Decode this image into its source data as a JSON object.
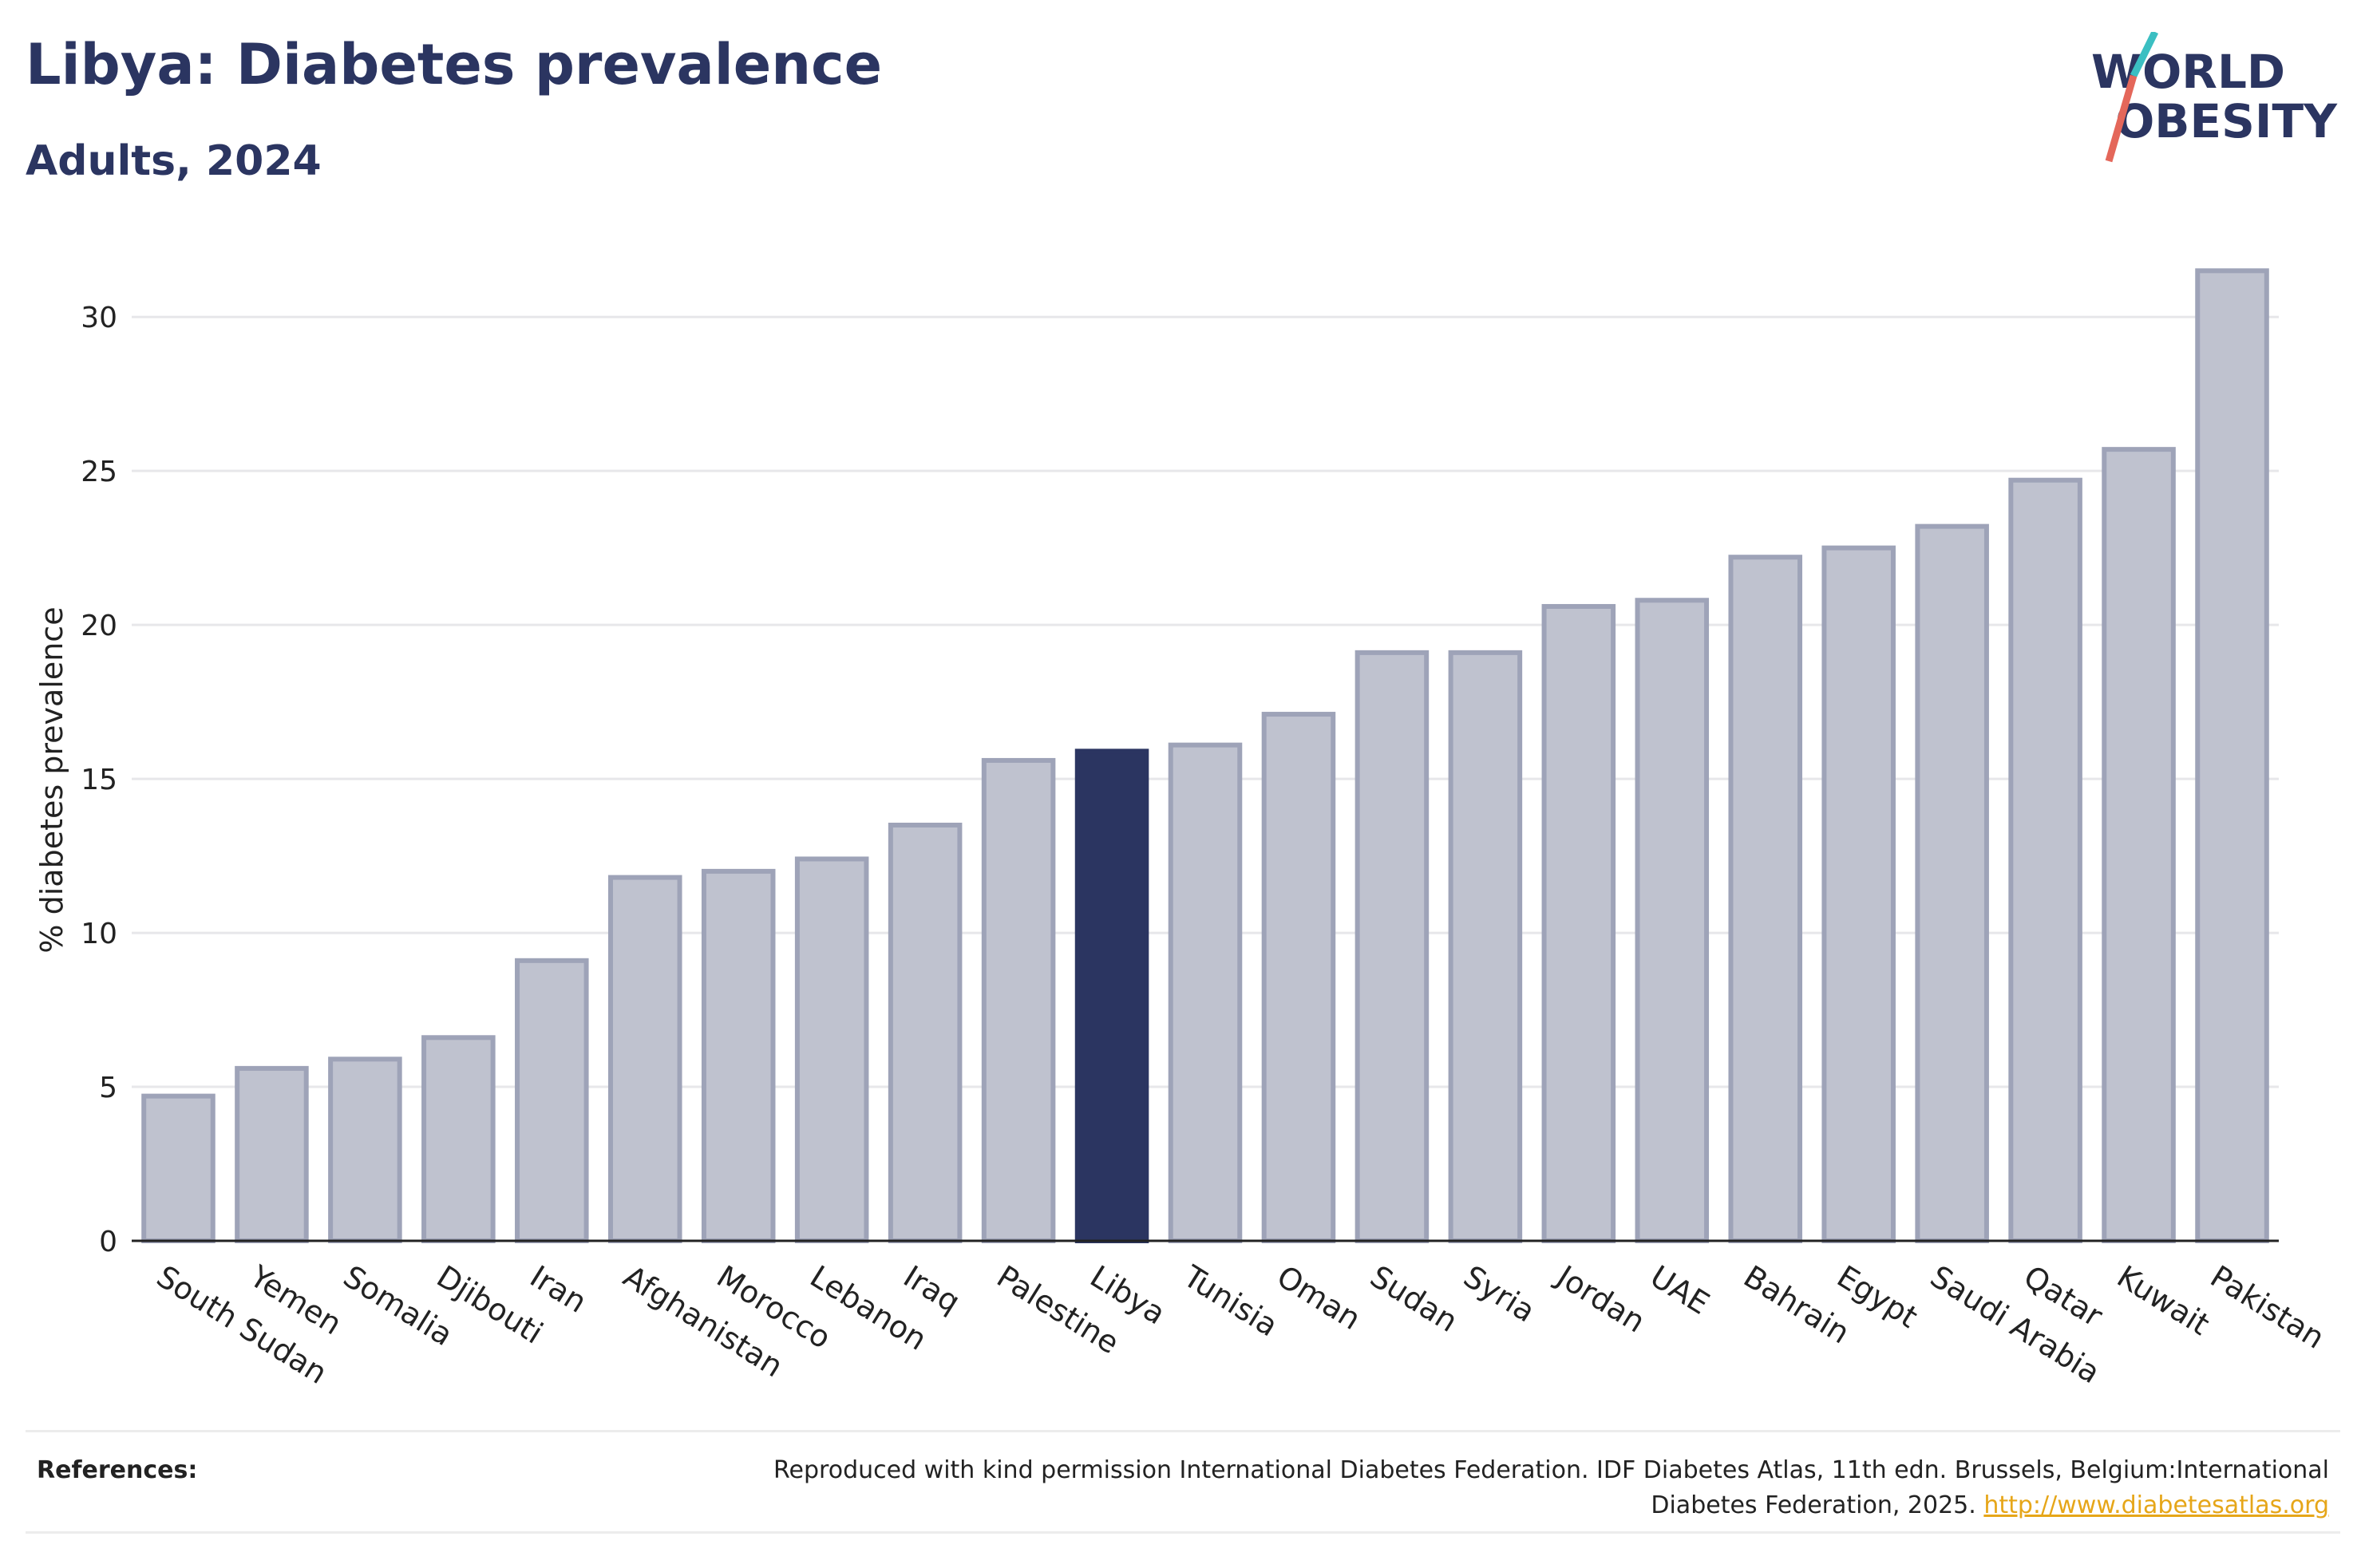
{
  "header": {
    "title": "Libya: Diabetes prevalence",
    "subtitle": "Adults, 2024"
  },
  "logo": {
    "line1": "WORLD",
    "line2": "OBESITY"
  },
  "references": {
    "label": "References:",
    "text": "Reproduced with kind permission International Diabetes Federation. IDF Diabetes Atlas, 11th edn. Brussels, Belgium:International Diabetes Federation, 2025.",
    "link": "http://www.diabetesatlas.org"
  },
  "colors": {
    "bar": "#bfc2cf",
    "bar_border": "#9ea3b8",
    "highlight": "#2b3561",
    "link": "#e6a619"
  },
  "chart_data": {
    "type": "bar",
    "title": "Libya: Diabetes prevalence",
    "subtitle": "Adults, 2024",
    "xlabel": "",
    "ylabel": "% diabetes prevalence",
    "ylim": [
      0,
      32
    ],
    "yticks": [
      0,
      5,
      10,
      15,
      20,
      25,
      30
    ],
    "grid": true,
    "highlight": "Libya",
    "categories": [
      "South Sudan",
      "Yemen",
      "Somalia",
      "Djibouti",
      "Iran",
      "Afghanistan",
      "Morocco",
      "Lebanon",
      "Iraq",
      "Palestine",
      "Libya",
      "Tunisia",
      "Oman",
      "Sudan",
      "Syria",
      "Jordan",
      "UAE",
      "Bahrain",
      "Egypt",
      "Saudi Arabia",
      "Qatar",
      "Kuwait",
      "Pakistan"
    ],
    "values": [
      4.7,
      5.6,
      5.9,
      6.6,
      9.1,
      11.8,
      12.0,
      12.4,
      13.5,
      15.6,
      15.9,
      16.1,
      17.1,
      19.1,
      19.1,
      20.6,
      20.8,
      22.2,
      22.5,
      23.2,
      24.7,
      25.7,
      31.5
    ]
  }
}
